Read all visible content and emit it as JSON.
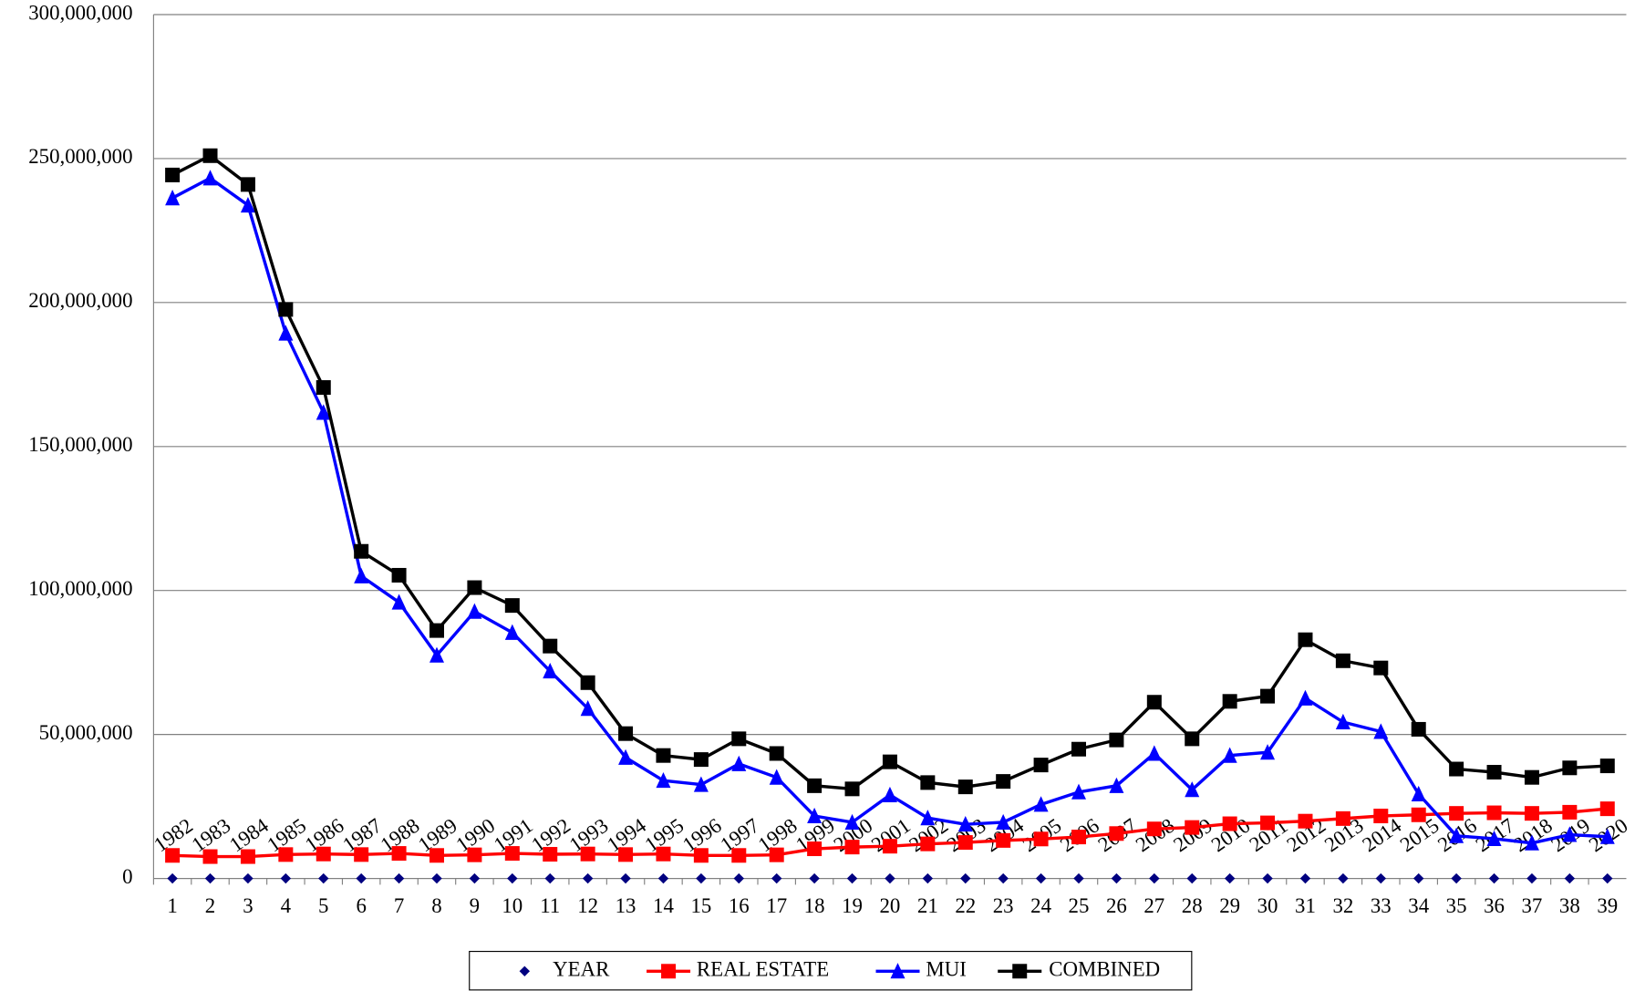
{
  "chart_data": {
    "type": "line",
    "categories": [
      1,
      2,
      3,
      4,
      5,
      6,
      7,
      8,
      9,
      10,
      11,
      12,
      13,
      14,
      15,
      16,
      17,
      18,
      19,
      20,
      21,
      22,
      23,
      24,
      25,
      26,
      27,
      28,
      29,
      30,
      31,
      32,
      33,
      34,
      35,
      36,
      37,
      38,
      39
    ],
    "ylim": [
      0,
      300000000
    ],
    "yticks": [
      0,
      {
        "value": 50000000,
        "label": "50,000,000"
      },
      {
        "value": 100000000,
        "label": "100,000,000"
      },
      {
        "value": 150000000,
        "label": "150,000,000"
      },
      {
        "value": 200000000,
        "label": "200,000,000"
      },
      {
        "value": 250000000,
        "label": "250,000,000"
      },
      {
        "value": 300000000,
        "label": "300,000,000"
      }
    ],
    "grid": true,
    "legend": "bottom",
    "series": [
      {
        "name": "YEAR",
        "color": "#000080",
        "marker": "diamond",
        "line": false,
        "values": [
          0,
          0,
          0,
          0,
          0,
          0,
          0,
          0,
          0,
          0,
          0,
          0,
          0,
          0,
          0,
          0,
          0,
          0,
          0,
          0,
          0,
          0,
          0,
          0,
          0,
          0,
          0,
          0,
          0,
          0,
          0,
          0,
          0,
          0,
          0,
          0,
          0,
          0,
          0
        ],
        "labels": [
          1982,
          1983,
          1984,
          1985,
          1986,
          1987,
          1988,
          1989,
          1990,
          1991,
          1992,
          1993,
          1994,
          1995,
          1996,
          1997,
          1998,
          1999,
          2000,
          2001,
          2002,
          2003,
          2004,
          2005,
          2006,
          2007,
          2008,
          2009,
          2010,
          2011,
          2012,
          2013,
          2014,
          2015,
          2016,
          2017,
          2018,
          2019,
          2020
        ]
      },
      {
        "name": "REAL ESTATE",
        "color": "#ff0000",
        "marker": "square",
        "line": true,
        "values": [
          8000000,
          7600000,
          7600000,
          8300000,
          8500000,
          8300000,
          8700000,
          8000000,
          8200000,
          8700000,
          8400000,
          8500000,
          8300000,
          8500000,
          8000000,
          8000000,
          8200000,
          10300000,
          10900000,
          11200000,
          12000000,
          12500000,
          13200000,
          13700000,
          14400000,
          15600000,
          17200000,
          17700000,
          19000000,
          19300000,
          19900000,
          20800000,
          21700000,
          22100000,
          22600000,
          22800000,
          22600000,
          23000000,
          24200000
        ]
      },
      {
        "name": "MUI",
        "color": "#0000ff",
        "marker": "triangle",
        "line": true,
        "values": [
          236300000,
          243200000,
          233800000,
          189300000,
          161800000,
          105000000,
          95900000,
          77500000,
          92700000,
          85400000,
          72000000,
          59000000,
          42000000,
          34000000,
          32600000,
          39800000,
          35100000,
          21700000,
          19500000,
          29000000,
          21000000,
          18800000,
          19500000,
          25700000,
          30000000,
          32200000,
          43400000,
          30800000,
          42700000,
          43800000,
          62600000,
          54300000,
          51000000,
          29300000,
          14800000,
          13800000,
          12300000,
          15200000,
          14500000
        ]
      },
      {
        "name": "COMBINED",
        "color": "#000000",
        "marker": "square",
        "line": true,
        "values": [
          244300000,
          251000000,
          241000000,
          197600000,
          170500000,
          113600000,
          105300000,
          86100000,
          101000000,
          94800000,
          80700000,
          68000000,
          50300000,
          42700000,
          41300000,
          48500000,
          43400000,
          32200000,
          31100000,
          40500000,
          33300000,
          31800000,
          33700000,
          39400000,
          44900000,
          48100000,
          61200000,
          48500000,
          61500000,
          63300000,
          82900000,
          75600000,
          73100000,
          51800000,
          38000000,
          36900000,
          35100000,
          38400000,
          39100000
        ]
      }
    ]
  }
}
